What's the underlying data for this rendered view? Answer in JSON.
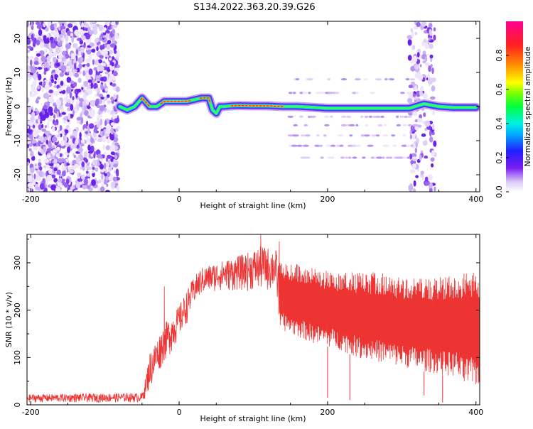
{
  "figure": {
    "title": "S134.2022.363.20.39.G26"
  },
  "chart_data": [
    {
      "type": "heatmap",
      "title": "S134.2022.363.20.39.G26",
      "xlabel": "Height of straight line (km)",
      "ylabel": "Frequency (Hz)",
      "xlim": [
        -205,
        405
      ],
      "ylim": [
        -25,
        25
      ],
      "x_ticks": [
        -200,
        0,
        200,
        400
      ],
      "y_ticks": [
        -20,
        -10,
        0,
        10,
        20
      ],
      "grid": false,
      "colorbar": {
        "label": "Normalized spectral amplitude",
        "range": [
          0,
          1
        ],
        "ticks": [
          0.0,
          0.2,
          0.4,
          0.6,
          0.8
        ],
        "colormap": [
          "#ffffff",
          "#d8c8f6",
          "#7a1cf0",
          "#2020ff",
          "#00e0ff",
          "#00ff40",
          "#ffff00",
          "#ff8000",
          "#ff0040",
          "#ff0080"
        ]
      },
      "ridge_frequency": {
        "x": [
          -80,
          -70,
          -60,
          -50,
          -40,
          -30,
          -20,
          -10,
          0,
          10,
          20,
          30,
          40,
          45,
          50,
          55,
          60,
          70,
          80,
          100,
          120,
          140,
          160,
          200,
          250,
          300,
          310,
          330,
          350,
          370,
          400
        ],
        "y": [
          0,
          -1,
          0,
          2.5,
          0,
          0,
          1.5,
          1.5,
          1.5,
          1.5,
          2,
          2.5,
          2.5,
          -1,
          -2,
          0,
          0,
          0.2,
          0.3,
          0.2,
          0.2,
          0,
          0,
          -0.5,
          -0.5,
          -0.5,
          -0.5,
          0.8,
          0,
          -0.3,
          -0.3
        ]
      },
      "noise_regions": [
        {
          "x_range": [
            -205,
            -82
          ],
          "description": "broadband"
        },
        {
          "x_range": [
            310,
            345
          ],
          "description": "broadband"
        }
      ]
    },
    {
      "type": "line",
      "xlabel": "Height of straight line (km)",
      "ylabel": "SNR (10 * v/v)",
      "xlim": [
        -205,
        405
      ],
      "ylim": [
        0,
        360
      ],
      "x_ticks": [
        -200,
        0,
        200,
        400
      ],
      "y_ticks": [
        0,
        100,
        200,
        300
      ],
      "grid": false,
      "series_color": "#ee3333",
      "envelope": {
        "x": [
          -205,
          -50,
          -45,
          -40,
          -30,
          -20,
          -10,
          0,
          10,
          20,
          30,
          50,
          70,
          90,
          110,
          130,
          135,
          150,
          180,
          210,
          240,
          270,
          300,
          330,
          350,
          360,
          375,
          380,
          390,
          405
        ],
        "low": [
          5,
          5,
          15,
          30,
          60,
          90,
          110,
          140,
          170,
          210,
          230,
          240,
          240,
          240,
          240,
          240,
          160,
          150,
          130,
          120,
          100,
          90,
          80,
          70,
          65,
          60,
          60,
          40,
          40,
          40
        ],
        "high": [
          22,
          25,
          60,
          110,
          140,
          170,
          190,
          210,
          240,
          270,
          290,
          300,
          310,
          320,
          335,
          330,
          300,
          300,
          290,
          280,
          280,
          280,
          270,
          270,
          270,
          270,
          275,
          280,
          280,
          280
        ]
      },
      "peaks": [
        {
          "x": 110,
          "y": 360
        },
        {
          "x": 135,
          "y": 345
        },
        {
          "x": -20,
          "y": 250
        }
      ],
      "dips": [
        {
          "x": 200,
          "y": 15
        },
        {
          "x": 230,
          "y": 10
        },
        {
          "x": 330,
          "y": 20
        },
        {
          "x": 355,
          "y": 5
        }
      ]
    }
  ]
}
